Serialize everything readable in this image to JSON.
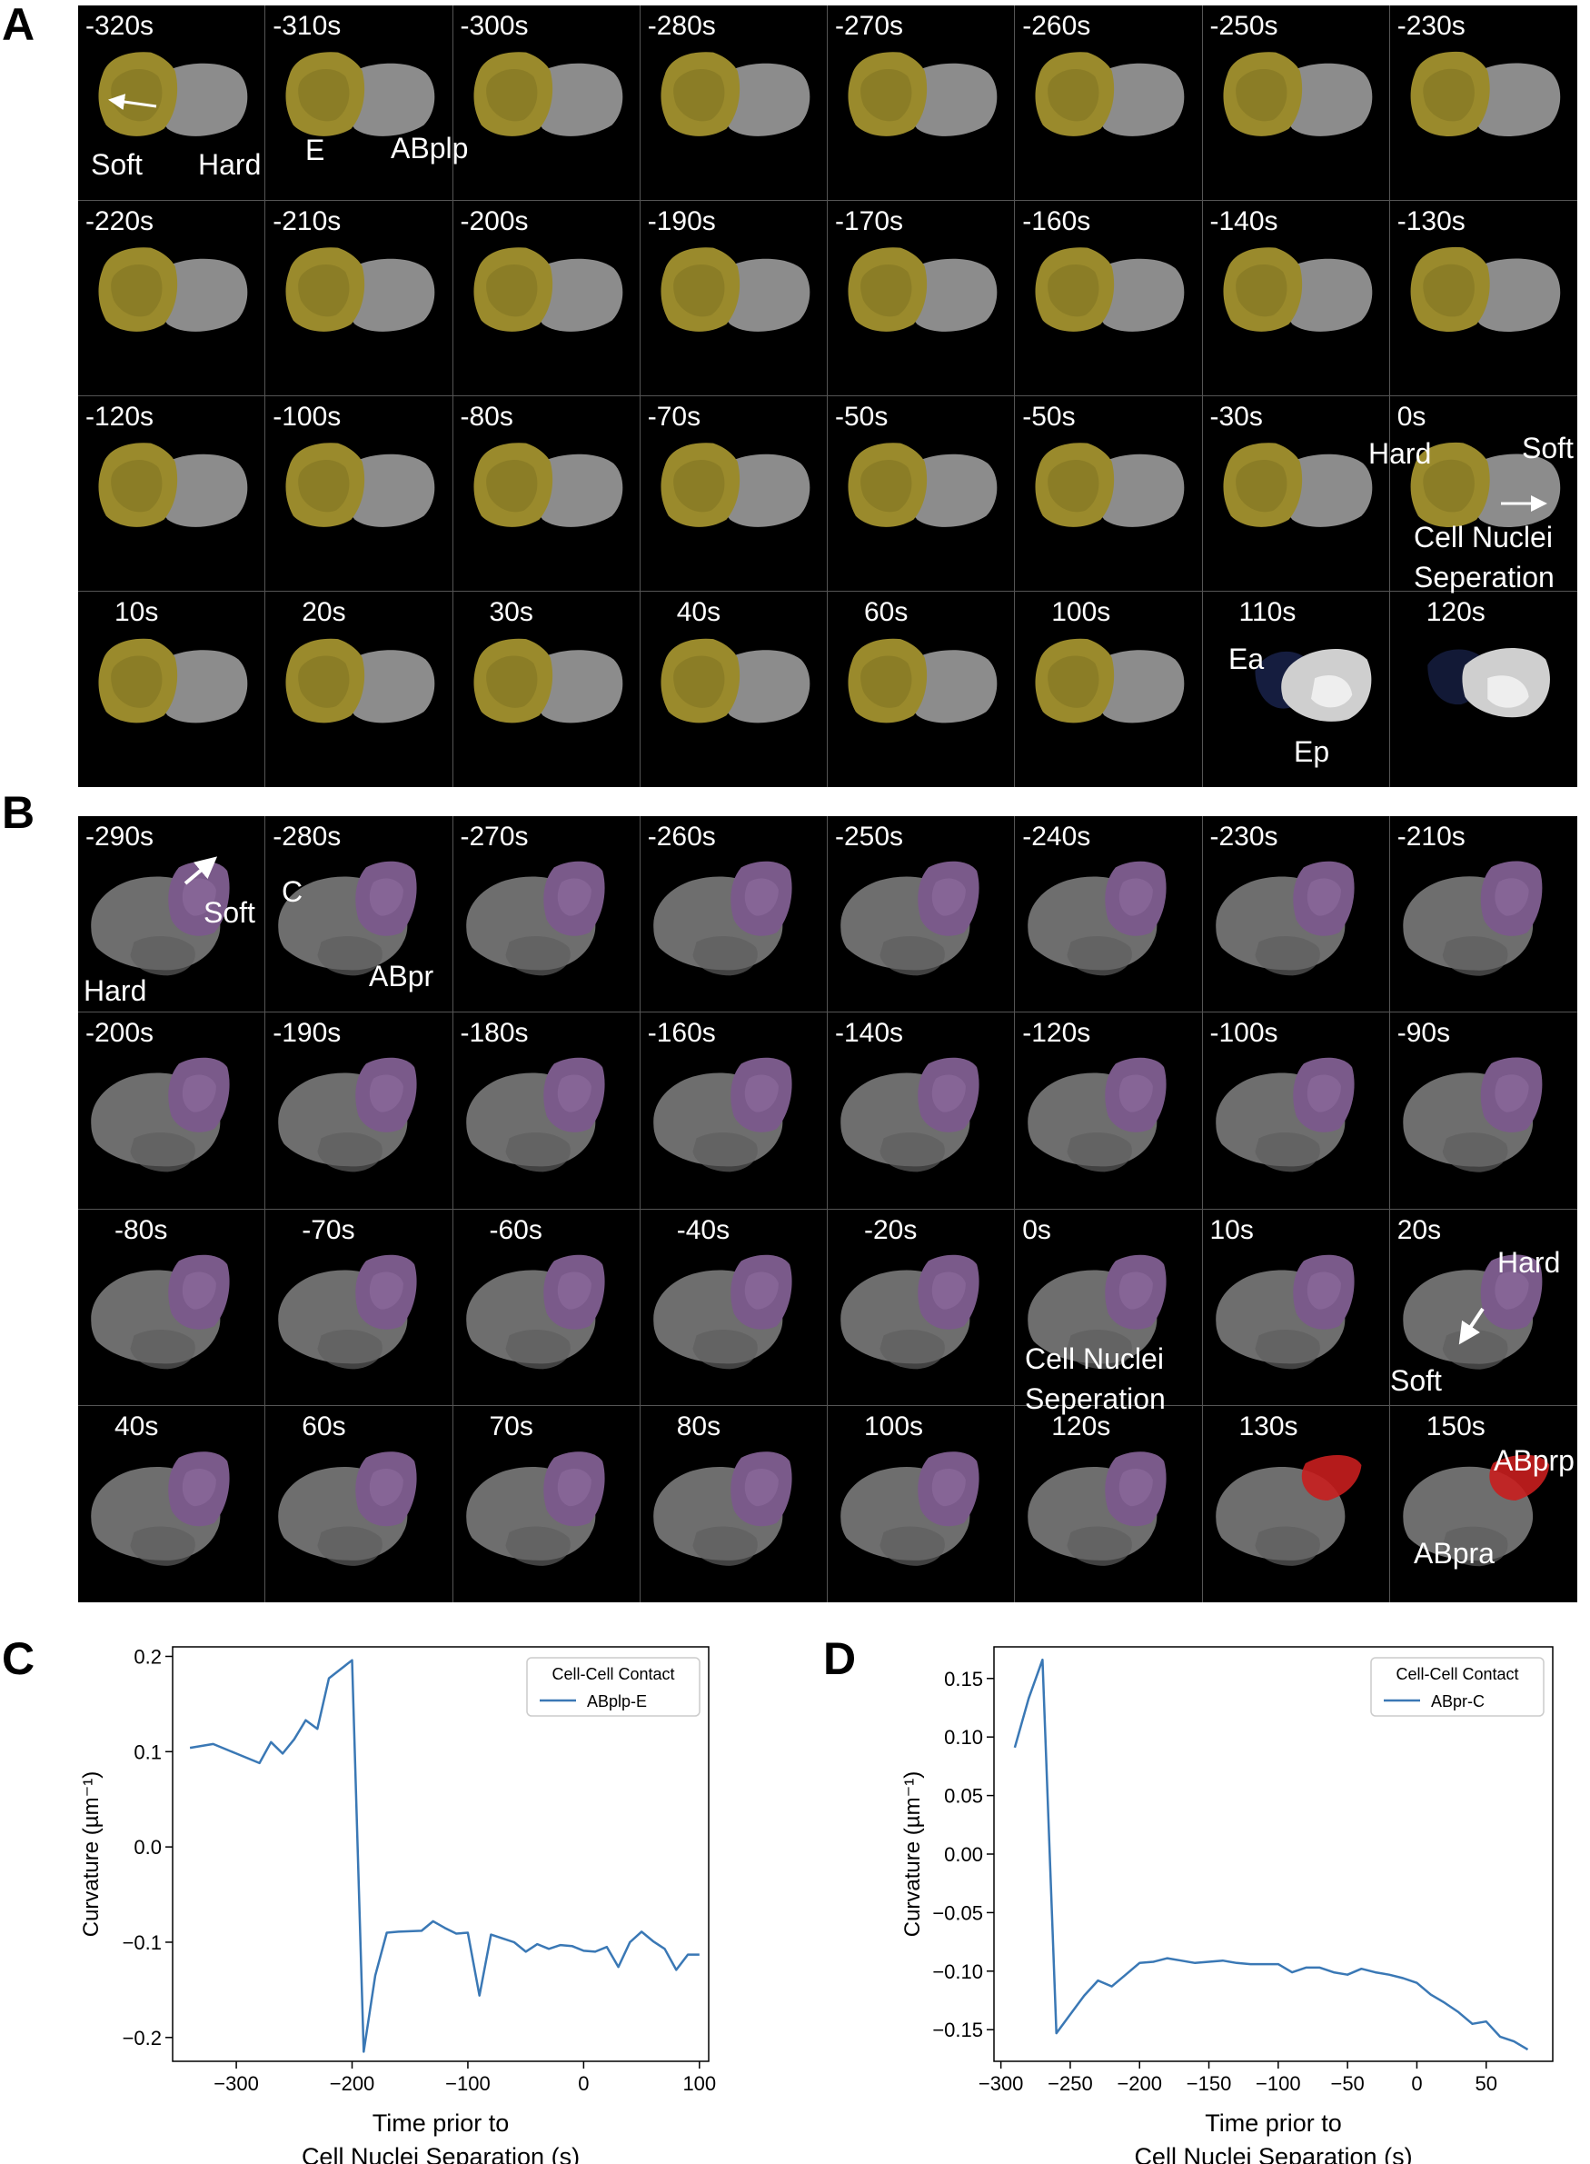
{
  "panels": {
    "a": "A",
    "b": "B",
    "c": "C",
    "d": "D"
  },
  "grid_a": {
    "times": [
      "-320s",
      "-310s",
      "-300s",
      "-280s",
      "-270s",
      "-260s",
      "-250s",
      "-230s",
      "-220s",
      "-210s",
      "-200s",
      "-190s",
      "-170s",
      "-160s",
      "-140s",
      "-130s",
      "-120s",
      "-100s",
      "-80s",
      "-70s",
      "-50s",
      "-50s",
      "-30s",
      "0s",
      "10s",
      "20s",
      "30s",
      "40s",
      "60s",
      "100s",
      "110s",
      "120s"
    ],
    "annotations": {
      "soft_1": "Soft",
      "hard_1": "Hard",
      "e": "E",
      "abplp": "ABplp",
      "hard_2": "Hard",
      "soft_2": "Soft",
      "separation_line1": "Cell Nuclei",
      "separation_line2": "Seperation",
      "ea": "Ea",
      "ep": "Ep"
    },
    "colors": {
      "cell_e": "#9a8a2c",
      "cell_partner": "#8c8c8c",
      "daughter_dark": "#1e2a5a",
      "daughter_light": "#cfcfcf"
    }
  },
  "grid_b": {
    "times": [
      "-290s",
      "-280s",
      "-270s",
      "-260s",
      "-250s",
      "-240s",
      "-230s",
      "-210s",
      "-200s",
      "-190s",
      "-180s",
      "-160s",
      "-140s",
      "-120s",
      "-100s",
      "-90s",
      "-80s",
      "-70s",
      "-60s",
      "-40s",
      "-20s",
      "0s",
      "10s",
      "20s",
      "40s",
      "60s",
      "70s",
      "80s",
      "100s",
      "120s",
      "130s",
      "150s"
    ],
    "annotations": {
      "soft_1": "Soft",
      "hard_1": "Hard",
      "c": "C",
      "abpr": "ABpr",
      "separation_line1": "Cell Nuclei",
      "separation_line2": "Seperation",
      "hard_2": "Hard",
      "soft_2": "Soft",
      "abprp": "ABprp",
      "abpra": "ABpra"
    },
    "colors": {
      "cell_c": "#7a5a8a",
      "cell_partner": "#6e6e6e",
      "daughter": "#c81e1e"
    }
  },
  "chart_data": [
    {
      "type": "line",
      "panel": "C",
      "xlabel_line1": "Time prior to",
      "xlabel_line2": "Cell Nuclei Separation (s)",
      "ylabel": "Curvature (µm⁻¹)",
      "xlim": [
        -355,
        108
      ],
      "ylim": [
        -0.225,
        0.21
      ],
      "xticks": [
        -300,
        -200,
        -100,
        0,
        100
      ],
      "xtick_labels": [
        "−300",
        "−200",
        "−100",
        "0",
        "100"
      ],
      "yticks": [
        -0.2,
        -0.1,
        0.0,
        0.1,
        0.2
      ],
      "ytick_labels": [
        "−0.2",
        "−0.1",
        "0.0",
        "0.1",
        "0.2"
      ],
      "legend_title": "Cell-Cell Contact",
      "legend_placement": "top-right",
      "line_color": "#3a78b5",
      "series": [
        {
          "name": "ABplp-E",
          "x": [
            -340,
            -320,
            -300,
            -280,
            -270,
            -260,
            -250,
            -240,
            -230,
            -220,
            -200,
            -190,
            -180,
            -170,
            -160,
            -140,
            -130,
            -120,
            -110,
            -100,
            -90,
            -80,
            -70,
            -60,
            -50,
            -40,
            -30,
            -20,
            -10,
            0,
            10,
            20,
            30,
            40,
            50,
            60,
            70,
            80,
            90,
            100
          ],
          "y": [
            0.104,
            0.108,
            0.098,
            0.088,
            0.11,
            0.098,
            0.113,
            0.133,
            0.124,
            0.177,
            0.196,
            -0.215,
            -0.135,
            -0.09,
            -0.089,
            -0.088,
            -0.078,
            -0.085,
            -0.091,
            -0.09,
            -0.156,
            -0.092,
            -0.096,
            -0.1,
            -0.11,
            -0.102,
            -0.107,
            -0.103,
            -0.104,
            -0.109,
            -0.11,
            -0.105,
            -0.126,
            -0.1,
            -0.089,
            -0.099,
            -0.107,
            -0.129,
            -0.113,
            -0.113
          ]
        }
      ]
    },
    {
      "type": "line",
      "panel": "D",
      "xlabel_line1": "Time prior to",
      "xlabel_line2": "Cell Nuclei Separation (s)",
      "ylabel": "Curvature (µm⁻¹)",
      "xlim": [
        -305,
        98
      ],
      "ylim": [
        -0.177,
        0.177
      ],
      "xticks": [
        -300,
        -250,
        -200,
        -150,
        -100,
        -50,
        0,
        50
      ],
      "xtick_labels": [
        "−300",
        "−250",
        "−200",
        "−150",
        "−100",
        "−50",
        "0",
        "50"
      ],
      "yticks": [
        -0.15,
        -0.1,
        -0.05,
        0.0,
        0.05,
        0.1,
        0.15
      ],
      "ytick_labels": [
        "−0.15",
        "−0.10",
        "−0.05",
        "0.00",
        "0.05",
        "0.10",
        "0.15"
      ],
      "legend_title": "Cell-Cell Contact",
      "legend_placement": "top-right",
      "line_color": "#3a78b5",
      "series": [
        {
          "name": "ABpr-C",
          "x": [
            -290,
            -280,
            -270,
            -260,
            -250,
            -240,
            -230,
            -220,
            -210,
            -200,
            -190,
            -180,
            -170,
            -160,
            -150,
            -140,
            -130,
            -120,
            -110,
            -100,
            -90,
            -80,
            -70,
            -60,
            -50,
            -40,
            -30,
            -20,
            -10,
            0,
            10,
            20,
            30,
            40,
            50,
            60,
            70,
            80
          ],
          "y": [
            0.091,
            0.133,
            0.166,
            -0.153,
            -0.137,
            -0.121,
            -0.108,
            -0.113,
            -0.103,
            -0.093,
            -0.092,
            -0.089,
            -0.091,
            -0.093,
            -0.092,
            -0.091,
            -0.093,
            -0.094,
            -0.094,
            -0.094,
            -0.101,
            -0.097,
            -0.097,
            -0.101,
            -0.103,
            -0.098,
            -0.101,
            -0.103,
            -0.106,
            -0.11,
            -0.12,
            -0.127,
            -0.135,
            -0.145,
            -0.143,
            -0.156,
            -0.16,
            -0.167
          ]
        }
      ]
    }
  ]
}
